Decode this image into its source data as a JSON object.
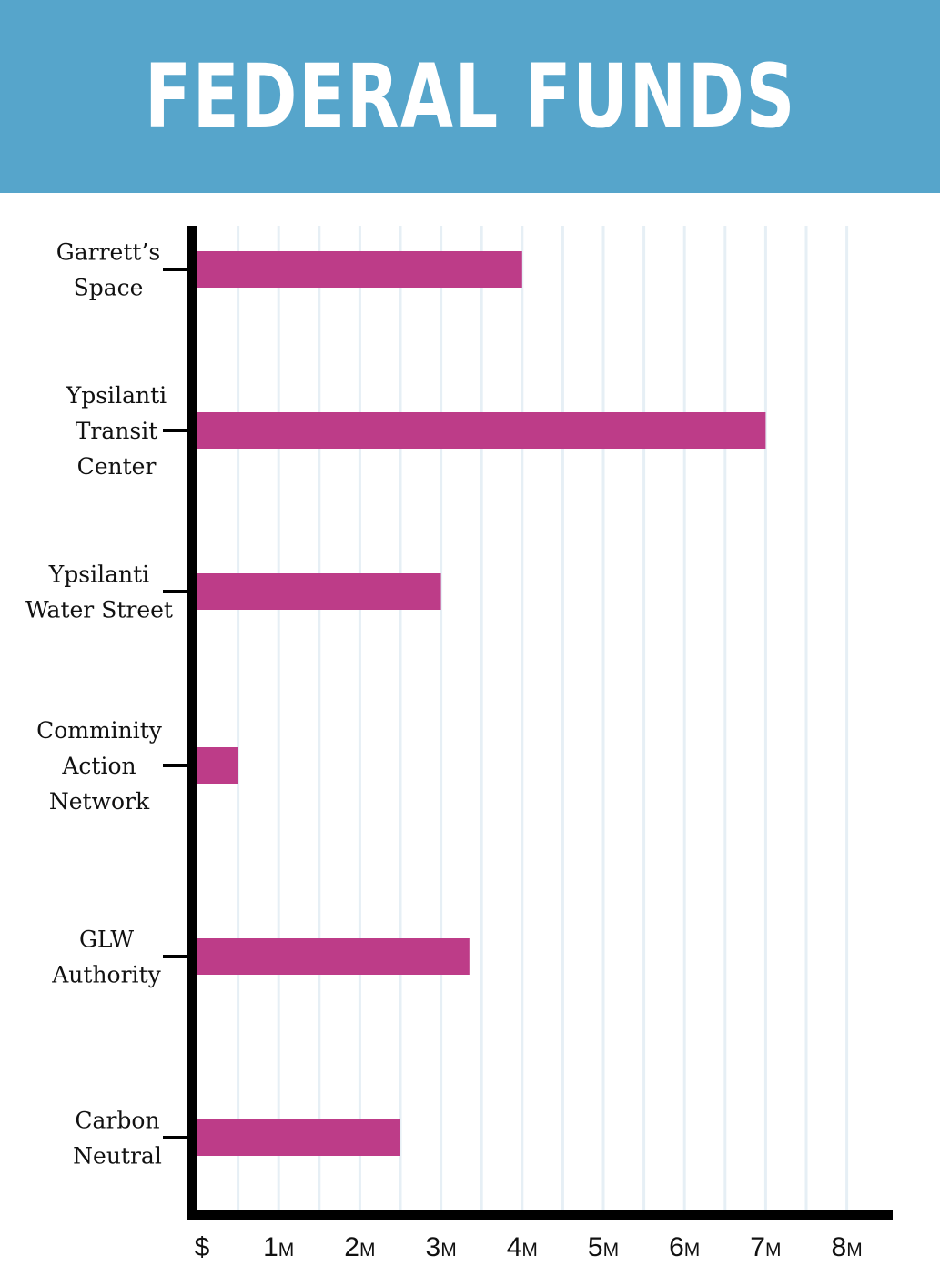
{
  "title": "FEDERAL FUNDS",
  "colors": {
    "banner": "#56a5cb",
    "bar": "#bd3c88",
    "grid": "#e6eff5",
    "axis": "#000000"
  },
  "chart_data": {
    "type": "bar",
    "orientation": "horizontal",
    "title": "FEDERAL FUNDS",
    "xlabel": "",
    "ylabel": "",
    "xlim": [
      0,
      8
    ],
    "grid": "vertical lines every 0.5M",
    "categories": [
      [
        "Garrett’s",
        "Space"
      ],
      [
        "Ypsilanti",
        "Transit",
        "Center"
      ],
      [
        "Ypsilanti",
        "Water Street"
      ],
      [
        "Comminity",
        "Action",
        "Network"
      ],
      [
        "GLW",
        "Authority"
      ],
      [
        "Carbon",
        "Neutral"
      ]
    ],
    "values": [
      4.0,
      7.0,
      3.0,
      0.5,
      3.35,
      2.5
    ],
    "x_ticks": [
      {
        "value": 0,
        "num": "$",
        "unit": ""
      },
      {
        "value": 1,
        "num": "1",
        "unit": "M"
      },
      {
        "value": 2,
        "num": "2",
        "unit": "M"
      },
      {
        "value": 3,
        "num": "3",
        "unit": "M"
      },
      {
        "value": 4,
        "num": "4",
        "unit": "M"
      },
      {
        "value": 5,
        "num": "5",
        "unit": "M"
      },
      {
        "value": 6,
        "num": "6",
        "unit": "M"
      },
      {
        "value": 7,
        "num": "7",
        "unit": "M"
      },
      {
        "value": 8,
        "num": "8",
        "unit": "M"
      }
    ]
  }
}
